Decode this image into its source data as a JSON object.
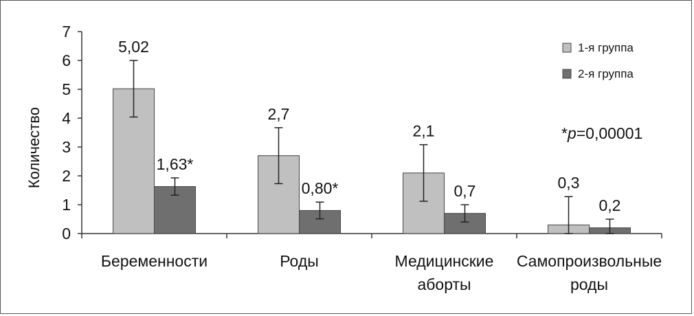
{
  "chart_data": {
    "type": "bar",
    "ylabel": "Количество",
    "ylim": [
      0,
      7
    ],
    "yticks": [
      "0",
      "1",
      "2",
      "3",
      "4",
      "5",
      "6",
      "7"
    ],
    "categories": [
      [
        "Беременности"
      ],
      [
        "Роды"
      ],
      [
        "Медицинские",
        "аборты"
      ],
      [
        "Самопроизвольные",
        "роды"
      ]
    ],
    "series": [
      {
        "name": "1-я группа",
        "color": "#c0c0c0",
        "values": [
          5.02,
          2.7,
          2.1,
          0.3
        ],
        "error": [
          0.98,
          0.97,
          0.98,
          0.98
        ],
        "labels": [
          "5,02",
          "2,7",
          "2,1",
          "0,3"
        ]
      },
      {
        "name": "2-я группа",
        "color": "#6f6f6f",
        "values": [
          1.63,
          0.8,
          0.7,
          0.2
        ],
        "error": [
          0.3,
          0.29,
          0.3,
          0.3
        ],
        "labels": [
          "1,63*",
          "0,80*",
          "0,7",
          "0,2"
        ]
      }
    ],
    "legend_position": "top-right",
    "note": {
      "prefix": "*",
      "italic": "p",
      "suffix": "=0,00001"
    },
    "grid": false
  }
}
